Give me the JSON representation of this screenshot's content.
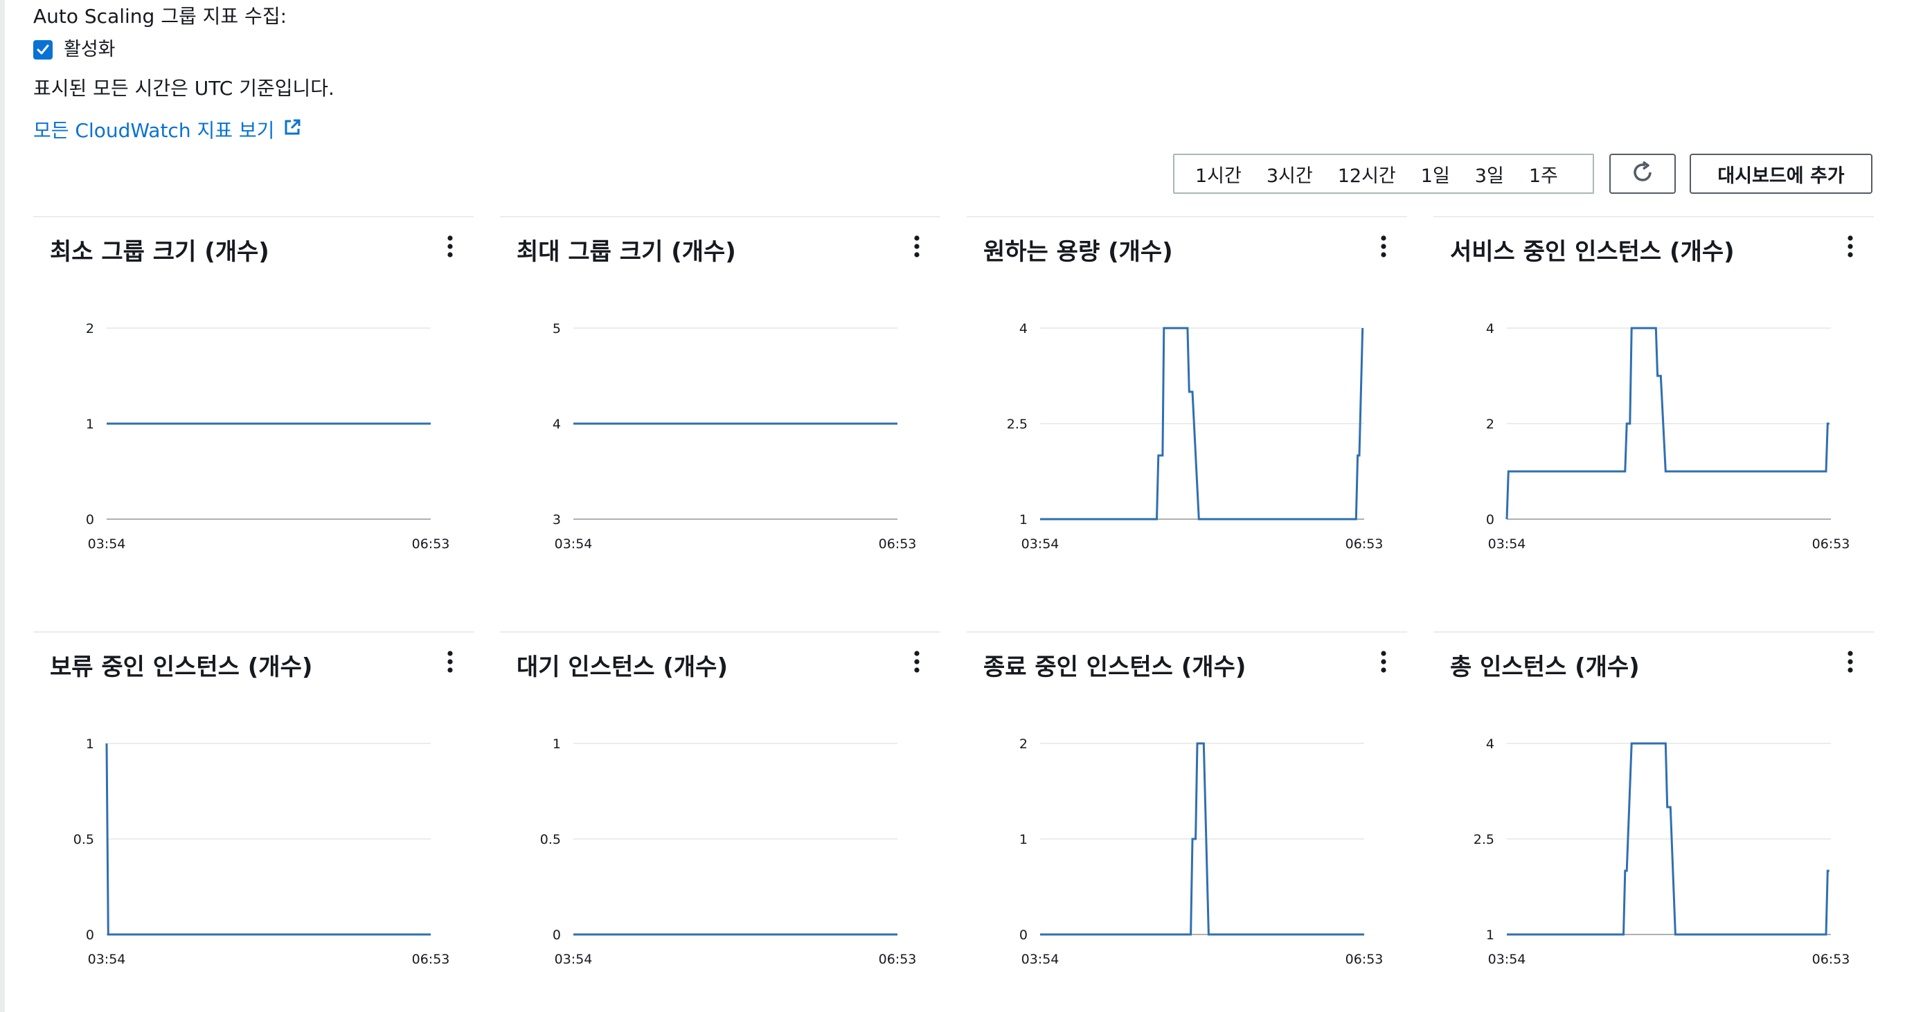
{
  "page": {
    "section_label": "Auto Scaling 그룹 지표 수집:",
    "checkbox_label": "활성화",
    "checkbox_checked": true,
    "timezone_note": "표시된 모든 시간은 UTC 기준입니다.",
    "cloudwatch_link": "모든 CloudWatch 지표 보기",
    "icons": {
      "checkbox": "check-icon",
      "link": "external-link-icon",
      "refresh": "refresh-icon",
      "menu": "more-vertical-icon"
    },
    "accent_color": "#0972d3",
    "series_color": "#2f6fb0"
  },
  "toolbar": {
    "time_ranges": [
      "1시간",
      "3시간",
      "12시간",
      "1일",
      "3일",
      "1주"
    ],
    "add_to_dashboard": "대시보드에 추가"
  },
  "chart_data": [
    {
      "type": "line",
      "title": "최소 그룹 크기 (개수)",
      "xlabel": "",
      "ylabel": "",
      "x_ticks": [
        "03:54",
        "06:53"
      ],
      "y_ticks": [
        "0",
        "1",
        "2"
      ],
      "ylim": [
        0,
        2
      ],
      "series": [
        {
          "points": [
            [
              0,
              1
            ],
            [
              1,
              1
            ]
          ]
        }
      ]
    },
    {
      "type": "line",
      "title": "최대 그룹 크기 (개수)",
      "xlabel": "",
      "ylabel": "",
      "x_ticks": [
        "03:54",
        "06:53"
      ],
      "y_ticks": [
        "3",
        "4",
        "5"
      ],
      "ylim": [
        3,
        5
      ],
      "series": [
        {
          "points": [
            [
              0,
              4
            ],
            [
              1,
              4
            ]
          ]
        }
      ]
    },
    {
      "type": "line",
      "title": "원하는 용량 (개수)",
      "xlabel": "",
      "ylabel": "",
      "x_ticks": [
        "03:54",
        "06:53"
      ],
      "y_ticks": [
        "1",
        "2.5",
        "4"
      ],
      "ylim": [
        1,
        4
      ],
      "series": [
        {
          "points": [
            [
              0,
              1
            ],
            [
              0.36,
              1
            ],
            [
              0.365,
              2
            ],
            [
              0.378,
              2
            ],
            [
              0.382,
              4
            ],
            [
              0.455,
              4
            ],
            [
              0.46,
              3
            ],
            [
              0.47,
              3
            ],
            [
              0.49,
              1
            ],
            [
              0.975,
              1
            ],
            [
              0.98,
              2
            ],
            [
              0.985,
              2
            ],
            [
              0.995,
              4
            ]
          ]
        }
      ]
    },
    {
      "type": "line",
      "title": "서비스 중인 인스턴스 (개수)",
      "xlabel": "",
      "ylabel": "",
      "x_ticks": [
        "03:54",
        "06:53"
      ],
      "y_ticks": [
        "0",
        "2",
        "4"
      ],
      "ylim": [
        0,
        4
      ],
      "series": [
        {
          "points": [
            [
              0,
              0
            ],
            [
              0.005,
              1
            ],
            [
              0.365,
              1
            ],
            [
              0.37,
              2
            ],
            [
              0.38,
              2
            ],
            [
              0.385,
              4
            ],
            [
              0.46,
              4
            ],
            [
              0.465,
              3
            ],
            [
              0.475,
              3
            ],
            [
              0.49,
              1
            ],
            [
              0.985,
              1
            ],
            [
              0.99,
              2
            ],
            [
              0.995,
              2
            ]
          ]
        }
      ]
    },
    {
      "type": "line",
      "title": "보류 중인 인스턴스 (개수)",
      "xlabel": "",
      "ylabel": "",
      "x_ticks": [
        "03:54",
        "06:53"
      ],
      "y_ticks": [
        "0",
        "0.5",
        "1"
      ],
      "ylim": [
        0,
        1
      ],
      "series": [
        {
          "points": [
            [
              0,
              1
            ],
            [
              0.005,
              0
            ],
            [
              1,
              0
            ]
          ]
        }
      ]
    },
    {
      "type": "line",
      "title": "대기 인스턴스 (개수)",
      "xlabel": "",
      "ylabel": "",
      "x_ticks": [
        "03:54",
        "06:53"
      ],
      "y_ticks": [
        "0",
        "0.5",
        "1"
      ],
      "ylim": [
        0,
        1
      ],
      "series": [
        {
          "points": [
            [
              0,
              0
            ],
            [
              1,
              0
            ]
          ]
        }
      ]
    },
    {
      "type": "line",
      "title": "종료 중인 인스턴스 (개수)",
      "xlabel": "",
      "ylabel": "",
      "x_ticks": [
        "03:54",
        "06:53"
      ],
      "y_ticks": [
        "0",
        "1",
        "2"
      ],
      "ylim": [
        0,
        2
      ],
      "series": [
        {
          "points": [
            [
              0,
              0
            ],
            [
              0.465,
              0
            ],
            [
              0.47,
              1
            ],
            [
              0.48,
              1
            ],
            [
              0.485,
              2
            ],
            [
              0.505,
              2
            ],
            [
              0.52,
              0
            ],
            [
              1,
              0
            ]
          ]
        }
      ]
    },
    {
      "type": "line",
      "title": "총 인스턴스 (개수)",
      "xlabel": "",
      "ylabel": "",
      "x_ticks": [
        "03:54",
        "06:53"
      ],
      "y_ticks": [
        "1",
        "2.5",
        "4"
      ],
      "ylim": [
        1,
        4
      ],
      "series": [
        {
          "points": [
            [
              0,
              1
            ],
            [
              0.36,
              1
            ],
            [
              0.365,
              2
            ],
            [
              0.37,
              2
            ],
            [
              0.385,
              4
            ],
            [
              0.49,
              4
            ],
            [
              0.495,
              3
            ],
            [
              0.505,
              3
            ],
            [
              0.52,
              1
            ],
            [
              0.985,
              1
            ],
            [
              0.99,
              2
            ],
            [
              0.995,
              2
            ]
          ]
        }
      ]
    }
  ]
}
